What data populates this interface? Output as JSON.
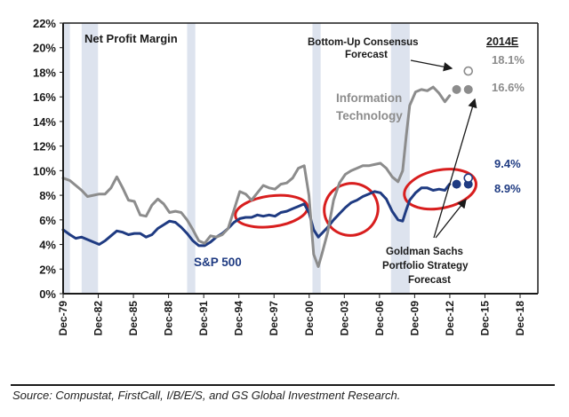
{
  "chart_data": {
    "type": "line",
    "title": "Net Profit Margin",
    "xlabel": "",
    "ylabel": "",
    "ylim": [
      0,
      22
    ],
    "yticks": [
      "0%",
      "2%",
      "4%",
      "6%",
      "8%",
      "10%",
      "12%",
      "14%",
      "16%",
      "18%",
      "20%",
      "22%"
    ],
    "ytick_values": [
      0,
      2,
      4,
      6,
      8,
      10,
      12,
      14,
      16,
      18,
      20,
      22
    ],
    "xlim": [
      1979.92,
      2018.92
    ],
    "xticks": [
      "Dec-79",
      "Dec-82",
      "Dec-85",
      "Dec-88",
      "Dec-91",
      "Dec-94",
      "Dec-97",
      "Dec-00",
      "Dec-03",
      "Dec-06",
      "Dec-09",
      "Dec-12",
      "Dec-15",
      "Dec-18"
    ],
    "xtick_values": [
      1979.92,
      1982.92,
      1985.92,
      1988.92,
      1991.92,
      1994.92,
      1997.92,
      2000.92,
      2003.92,
      2006.92,
      2009.92,
      2012.92,
      2015.92,
      2018.92
    ],
    "grid": false,
    "recessions": [
      [
        1980.0,
        1980.5
      ],
      [
        1981.5,
        1982.9
      ],
      [
        1990.5,
        1991.2
      ],
      [
        2001.2,
        2001.9
      ],
      [
        2007.9,
        2009.5
      ]
    ],
    "x": [
      1979.92,
      1980.5,
      1981.0,
      1981.5,
      1982.0,
      1982.5,
      1983.0,
      1983.5,
      1984.0,
      1984.5,
      1985.0,
      1985.5,
      1986.0,
      1986.5,
      1987.0,
      1987.5,
      1988.0,
      1988.5,
      1989.0,
      1989.5,
      1990.0,
      1990.5,
      1991.0,
      1991.5,
      1992.0,
      1992.5,
      1993.0,
      1993.5,
      1994.0,
      1994.5,
      1995.0,
      1995.5,
      1996.0,
      1996.5,
      1997.0,
      1997.5,
      1998.0,
      1998.5,
      1999.0,
      1999.5,
      2000.0,
      2000.5,
      2000.9,
      2001.3,
      2001.7,
      2002.0,
      2002.5,
      2003.0,
      2003.5,
      2004.0,
      2004.5,
      2005.0,
      2005.5,
      2006.0,
      2006.5,
      2007.0,
      2007.5,
      2008.0,
      2008.5,
      2008.9,
      2009.2,
      2009.5,
      2010.0,
      2010.5,
      2011.0,
      2011.5,
      2012.0,
      2012.5,
      2012.9
    ],
    "series": [
      {
        "name": "S&P 500",
        "color": "#1f3b82",
        "values": [
          5.2,
          4.8,
          4.5,
          4.6,
          4.4,
          4.2,
          4.0,
          4.3,
          4.7,
          5.1,
          5.0,
          4.8,
          4.9,
          4.9,
          4.6,
          4.8,
          5.3,
          5.6,
          5.9,
          5.8,
          5.4,
          4.9,
          4.3,
          3.9,
          3.9,
          4.2,
          4.6,
          4.9,
          5.3,
          5.8,
          6.1,
          6.2,
          6.2,
          6.4,
          6.3,
          6.4,
          6.3,
          6.6,
          6.7,
          6.9,
          7.1,
          7.3,
          6.6,
          5.2,
          4.6,
          4.9,
          5.4,
          6.0,
          6.5,
          7.0,
          7.4,
          7.6,
          7.9,
          8.1,
          8.3,
          8.2,
          7.7,
          6.7,
          6.0,
          5.9,
          6.8,
          7.6,
          8.2,
          8.6,
          8.6,
          8.4,
          8.5,
          8.4,
          8.9
        ]
      },
      {
        "name": "Information Technology",
        "color": "#8c8c8c",
        "values": [
          9.4,
          9.2,
          8.8,
          8.4,
          7.9,
          8.0,
          8.1,
          8.1,
          8.6,
          9.5,
          8.6,
          7.6,
          7.5,
          6.4,
          6.3,
          7.2,
          7.7,
          7.3,
          6.6,
          6.7,
          6.6,
          6.0,
          5.2,
          4.3,
          4.1,
          4.7,
          4.6,
          4.8,
          5.3,
          6.8,
          8.3,
          8.1,
          7.6,
          8.2,
          8.8,
          8.6,
          8.5,
          8.9,
          9.0,
          9.4,
          10.2,
          10.4,
          8.0,
          3.2,
          2.2,
          3.2,
          5.0,
          7.6,
          9.0,
          9.7,
          10.0,
          10.2,
          10.4,
          10.4,
          10.5,
          10.6,
          10.2,
          9.5,
          9.1,
          10.0,
          12.8,
          15.3,
          16.4,
          16.6,
          16.5,
          16.8,
          16.3,
          15.6,
          16.1
        ]
      }
    ],
    "forecast_points": [
      {
        "series": "S&P 500",
        "label": "Goldman Sachs Portfolio Strategy Forecast",
        "x": 2013.5,
        "value": 8.9,
        "style": "filled"
      },
      {
        "series": "S&P 500",
        "label": "Goldman Sachs Portfolio Strategy Forecast",
        "x": 2014.5,
        "value": 8.9,
        "style": "filled"
      },
      {
        "series": "S&P 500",
        "label": "Bottom-Up Consensus Forecast",
        "x": 2014.5,
        "value": 9.4,
        "style": "hollow"
      },
      {
        "series": "Information Technology",
        "label": "Goldman Sachs Portfolio Strategy Forecast",
        "x": 2013.5,
        "value": 16.6,
        "style": "filled"
      },
      {
        "series": "Information Technology",
        "label": "Goldman Sachs Portfolio Strategy Forecast",
        "x": 2014.5,
        "value": 16.6,
        "style": "filled"
      },
      {
        "series": "Information Technology",
        "label": "Bottom-Up Consensus Forecast",
        "x": 2014.5,
        "value": 18.1,
        "style": "hollow"
      }
    ],
    "highlight_periods": [
      [
        1994.9,
        2000.5
      ],
      [
        2002.5,
        2006.5
      ],
      [
        2009.3,
        2014.9
      ]
    ],
    "highlight_color": "#d81e1e",
    "annotations": {
      "year_label": "2014E",
      "it_consensus": "18.1%",
      "it_gs": "16.6%",
      "sp_consensus": "9.4%",
      "sp_gs": "8.9%",
      "consensus_label_line1": "Bottom-Up Consensus",
      "consensus_label_line2": "Forecast",
      "gs_label_line1": "Goldman Sachs",
      "gs_label_line2": "Portfolio Strategy",
      "gs_label_line3": "Forecast",
      "it_label_line1": "Information",
      "it_label_line2": "Technology",
      "sp_label": "S&P 500"
    },
    "legend": "none"
  },
  "footer": {
    "source": "Source: Compustat, FirstCall, I/B/E/S, and GS Global Investment Research."
  },
  "colors": {
    "recession": "#dde3ee",
    "axis": "#1a1a1a",
    "sp500": "#1f3b82",
    "it": "#8c8c8c",
    "highlight": "#d81e1e"
  }
}
